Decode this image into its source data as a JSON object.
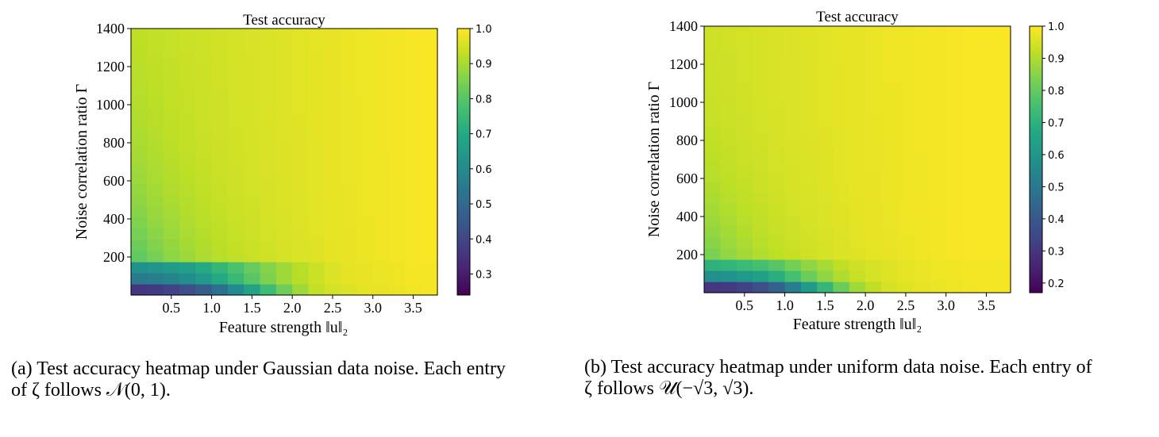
{
  "chart_data": [
    {
      "type": "heatmap",
      "panel_id": "a",
      "title": "Test accuracy",
      "xlabel": "Feature strength ‖u‖₂",
      "ylabel": "Noise correlation ratio Γ",
      "xlim": [
        0,
        3.8
      ],
      "ylim": [
        0,
        1400
      ],
      "xticks": [
        0.5,
        1.0,
        1.5,
        2.0,
        2.5,
        3.0,
        3.5
      ],
      "xtick_labels": [
        "0.5",
        "1.0",
        "1.5",
        "2.0",
        "2.5",
        "3.0",
        "3.5"
      ],
      "yticks": [
        200,
        400,
        600,
        800,
        1000,
        1200,
        1400
      ],
      "ytick_labels": [
        "200",
        "400",
        "600",
        "800",
        "1000",
        "1200",
        "1400"
      ],
      "colorbar": {
        "colormap": "viridis",
        "range": [
          0.24,
          1.0
        ],
        "ticks": [
          0.3,
          0.4,
          0.5,
          0.6,
          0.7,
          0.8,
          0.9,
          1.0
        ],
        "tick_labels": [
          "0.3",
          "0.4",
          "0.5",
          "0.6",
          "0.7",
          "0.8",
          "0.9",
          "1.0"
        ]
      },
      "grid": {
        "n_cols": 19,
        "n_rows": 24,
        "x_edges": [
          0,
          3.8
        ],
        "y_edges": [
          0,
          1400
        ],
        "description": "rows listed bottom (Γ≈0) to top (Γ≈1400); values approximate test accuracy",
        "model": {
          "kind": "min_rows_plus_plateau",
          "plateau_base": 0.93,
          "plateau_slope": 0.018,
          "transition_gamma": 420
        },
        "rows_at_bottom": [
          [
            0.36,
            0.37,
            0.39,
            0.42,
            0.46,
            0.52,
            0.6,
            0.68,
            0.76,
            0.83,
            0.89,
            0.93,
            0.95,
            0.96,
            0.97,
            0.975,
            0.98,
            0.985,
            0.99
          ],
          [
            0.55,
            0.56,
            0.58,
            0.61,
            0.65,
            0.7,
            0.75,
            0.8,
            0.85,
            0.89,
            0.92,
            0.94,
            0.96,
            0.97,
            0.975,
            0.98,
            0.985,
            0.99,
            0.99
          ],
          [
            0.62,
            0.63,
            0.65,
            0.67,
            0.7,
            0.74,
            0.78,
            0.82,
            0.86,
            0.89,
            0.92,
            0.94,
            0.96,
            0.97,
            0.975,
            0.98,
            0.985,
            0.99,
            0.99
          ]
        ]
      }
    },
    {
      "type": "heatmap",
      "panel_id": "b",
      "title": "Test accuracy",
      "xlabel": "Feature strength ‖u‖₂",
      "ylabel": "Noise correlation ratio Γ",
      "xlim": [
        0,
        3.8
      ],
      "ylim": [
        0,
        1400
      ],
      "xticks": [
        0.5,
        1.0,
        1.5,
        2.0,
        2.5,
        3.0,
        3.5
      ],
      "xtick_labels": [
        "0.5",
        "1.0",
        "1.5",
        "2.0",
        "2.5",
        "3.0",
        "3.5"
      ],
      "yticks": [
        200,
        400,
        600,
        800,
        1000,
        1200,
        1400
      ],
      "ytick_labels": [
        "200",
        "400",
        "600",
        "800",
        "1000",
        "1200",
        "1400"
      ],
      "colorbar": {
        "colormap": "viridis",
        "range": [
          0.17,
          1.0
        ],
        "ticks": [
          0.2,
          0.3,
          0.4,
          0.5,
          0.6,
          0.7,
          0.8,
          0.9,
          1.0
        ],
        "tick_labels": [
          "0.2",
          "0.3",
          "0.4",
          "0.5",
          "0.6",
          "0.7",
          "0.8",
          "0.9",
          "1.0"
        ]
      },
      "grid": {
        "n_cols": 19,
        "n_rows": 24,
        "x_edges": [
          0,
          3.8
        ],
        "y_edges": [
          0,
          1400
        ],
        "description": "rows listed bottom (Γ≈0) to top (Γ≈1400); values approximate test accuracy",
        "model": {
          "kind": "min_rows_plus_plateau",
          "plateau_base": 0.94,
          "plateau_slope": 0.017,
          "transition_gamma": 350
        },
        "rows_at_bottom": [
          [
            0.3,
            0.31,
            0.33,
            0.37,
            0.43,
            0.52,
            0.62,
            0.72,
            0.81,
            0.88,
            0.92,
            0.95,
            0.96,
            0.97,
            0.975,
            0.98,
            0.985,
            0.99,
            0.99
          ],
          [
            0.58,
            0.59,
            0.61,
            0.64,
            0.69,
            0.75,
            0.81,
            0.86,
            0.9,
            0.93,
            0.95,
            0.96,
            0.97,
            0.975,
            0.98,
            0.985,
            0.99,
            0.99,
            0.99
          ],
          [
            0.7,
            0.71,
            0.73,
            0.75,
            0.78,
            0.82,
            0.86,
            0.89,
            0.92,
            0.94,
            0.95,
            0.96,
            0.97,
            0.975,
            0.98,
            0.985,
            0.99,
            0.99,
            0.99
          ]
        ]
      }
    }
  ],
  "captions": {
    "a": {
      "line1": "(a) Test accuracy heatmap under Gaussian data noise. Each entry",
      "line2": "of ζ follows 𝒩(0, 1)."
    },
    "b": {
      "line1": "(b) Test accuracy heatmap under uniform data noise. Each entry of",
      "line2": "ζ follows 𝒰(−√3, √3)."
    }
  }
}
